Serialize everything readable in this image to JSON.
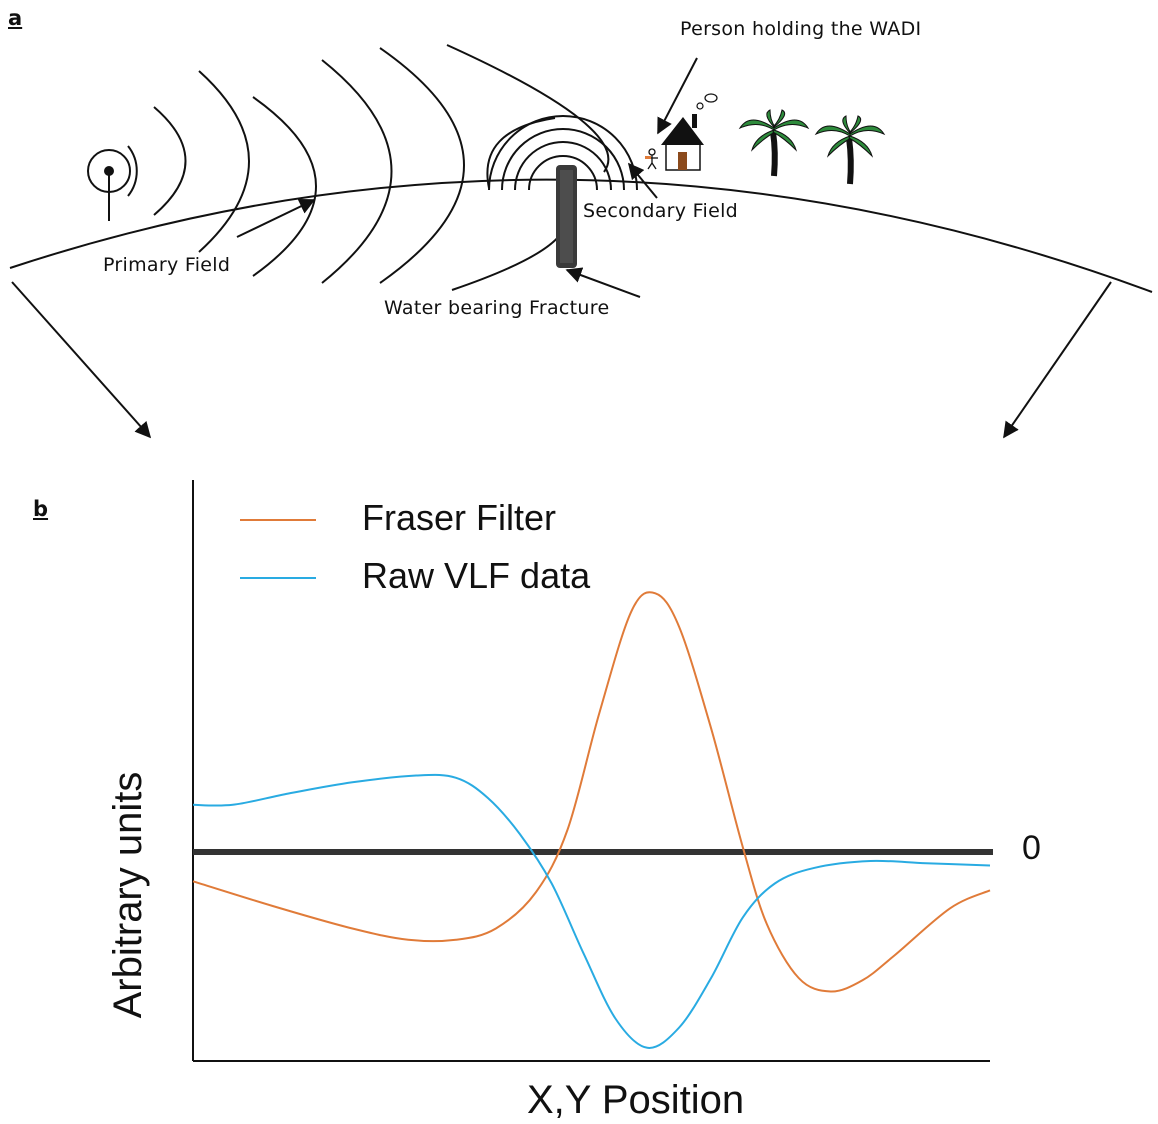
{
  "panel_a": {
    "label": "a",
    "labels": {
      "person": "Person holding the WADI",
      "secondary_field": "Secondary Field",
      "primary_field": "Primary Field",
      "fracture": "Water bearing Fracture"
    },
    "icons": [
      "transmitter-antenna-icon",
      "house-icon",
      "palm-tree-icon",
      "person-icon"
    ]
  },
  "panel_b": {
    "label": "b",
    "legend": [
      {
        "name": "Fraser Filter",
        "color": "#e07b39"
      },
      {
        "name": "Raw VLF data",
        "color": "#29abe2"
      }
    ],
    "xlabel": "X,Y Position",
    "ylabel": "Arbitrary units",
    "zero_label": "0"
  },
  "chart_data": {
    "type": "line",
    "title": "",
    "xlabel": "X,Y Position",
    "ylabel": "Arbitrary units",
    "xlim": [
      0,
      100
    ],
    "ylim": [
      -1,
      1.3
    ],
    "grid": false,
    "legend_position": "top-left",
    "zero_line": 0,
    "series": [
      {
        "name": "Fraser Filter",
        "color": "#e07b39",
        "points": [
          [
            0,
            -0.13
          ],
          [
            10,
            -0.24
          ],
          [
            20,
            -0.34
          ],
          [
            27,
            -0.39
          ],
          [
            33,
            -0.39
          ],
          [
            38,
            -0.34
          ],
          [
            43,
            -0.18
          ],
          [
            47,
            0.1
          ],
          [
            51,
            0.62
          ],
          [
            55,
            1.07
          ],
          [
            58,
            1.15
          ],
          [
            61,
            1.0
          ],
          [
            65,
            0.55
          ],
          [
            69,
            0.02
          ],
          [
            72,
            -0.32
          ],
          [
            76,
            -0.56
          ],
          [
            80,
            -0.62
          ],
          [
            84,
            -0.57
          ],
          [
            88,
            -0.46
          ],
          [
            95,
            -0.25
          ],
          [
            100,
            -0.17
          ]
        ]
      },
      {
        "name": "Raw VLF data",
        "color": "#29abe2",
        "points": [
          [
            0,
            0.21
          ],
          [
            5,
            0.21
          ],
          [
            12,
            0.26
          ],
          [
            20,
            0.31
          ],
          [
            28,
            0.34
          ],
          [
            33,
            0.33
          ],
          [
            37,
            0.24
          ],
          [
            41,
            0.08
          ],
          [
            45,
            -0.14
          ],
          [
            49,
            -0.45
          ],
          [
            53,
            -0.74
          ],
          [
            57,
            -0.87
          ],
          [
            61,
            -0.78
          ],
          [
            65,
            -0.56
          ],
          [
            69,
            -0.29
          ],
          [
            73,
            -0.14
          ],
          [
            78,
            -0.07
          ],
          [
            85,
            -0.04
          ],
          [
            92,
            -0.05
          ],
          [
            100,
            -0.06
          ]
        ]
      }
    ]
  }
}
